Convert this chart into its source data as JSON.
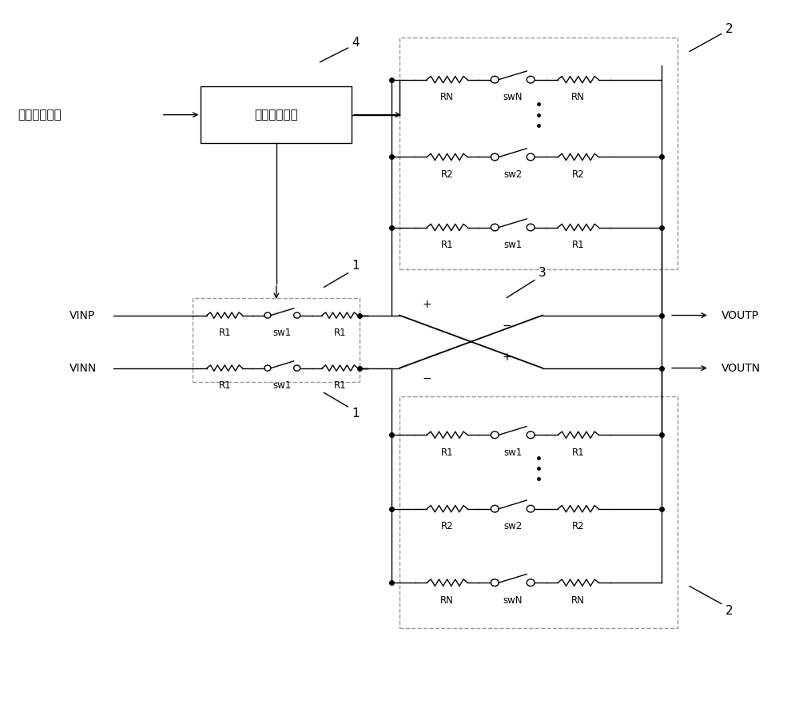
{
  "bg_color": "#ffffff",
  "line_color": "#000000",
  "dash_color": "#999999",
  "fig_width": 10.0,
  "fig_height": 8.86,
  "dpi": 100,
  "dcm_label": "数字控制模块",
  "input_label": "数字控制信号",
  "vinp_label": "VINP",
  "vinn_label": "VINN",
  "voutp_label": "VOUTP",
  "voutn_label": "VOUTN",
  "label_4": "4",
  "label_3": "3",
  "label_2": "2",
  "label_1": "1"
}
